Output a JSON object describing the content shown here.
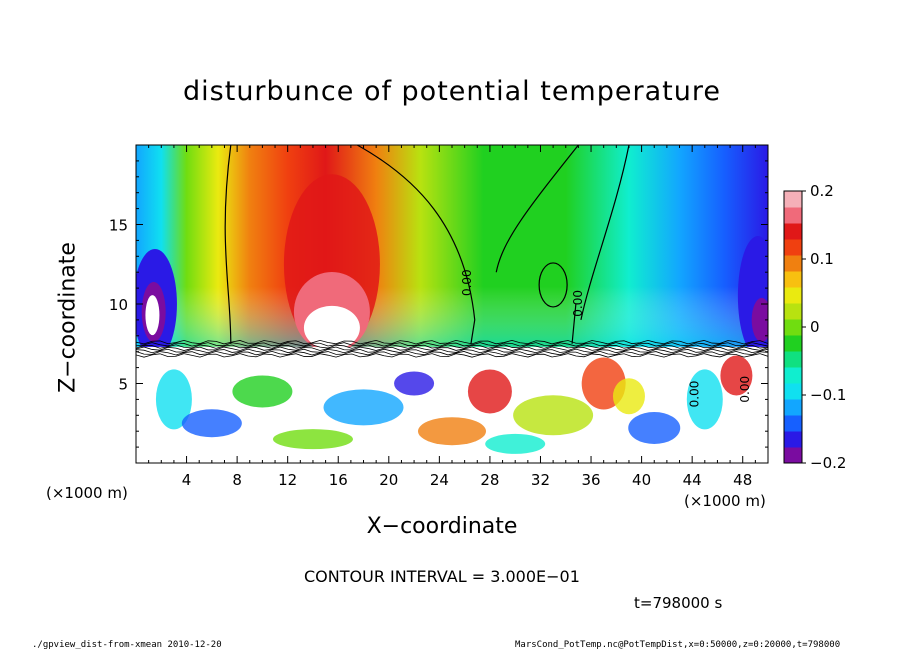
{
  "chart_data": {
    "type": "heatmap",
    "title": "disturbunce of potential temperature",
    "xlabel": "X−coordinate",
    "ylabel": "Z−coordinate",
    "x_unit": "(×1000 m)",
    "xlim": [
      0,
      50
    ],
    "ylim": [
      0,
      20
    ],
    "x_ticks": [
      4,
      8,
      12,
      16,
      20,
      24,
      28,
      32,
      36,
      40,
      44,
      48
    ],
    "y_ticks": [
      5,
      10,
      15
    ],
    "colorbar": {
      "range": [
        -0.2,
        0.2
      ],
      "tick_labels": [
        "0.2",
        "0.1",
        "0",
        "−0.1",
        "−0.2"
      ],
      "tick_values": [
        0.2,
        0.1,
        0,
        -0.1,
        -0.2
      ],
      "colors": [
        "#7a0ca0",
        "#2a1ae6",
        "#1660ff",
        "#12a6ff",
        "#10e0f0",
        "#10eecf",
        "#10e080",
        "#20d020",
        "#70dd10",
        "#b8e210",
        "#eaea10",
        "#f8c010",
        "#f08010",
        "#f04010",
        "#e01818",
        "#f06a7a",
        "#f5b0b8"
      ]
    },
    "contour_labels": [
      "0.00",
      "0.00",
      "0.00",
      "0.00"
    ],
    "contour_interval_text": "CONTOUR INTERVAL = 3.000E−01",
    "time_text": "t=798000 s",
    "grid": false
  },
  "footer": {
    "left": "./gpview_dist-from-xmean  2010-12-20",
    "right": "MarsCond_PotTemp.nc@PotTempDist,x=0:50000,z=0:20000,t=798000"
  }
}
